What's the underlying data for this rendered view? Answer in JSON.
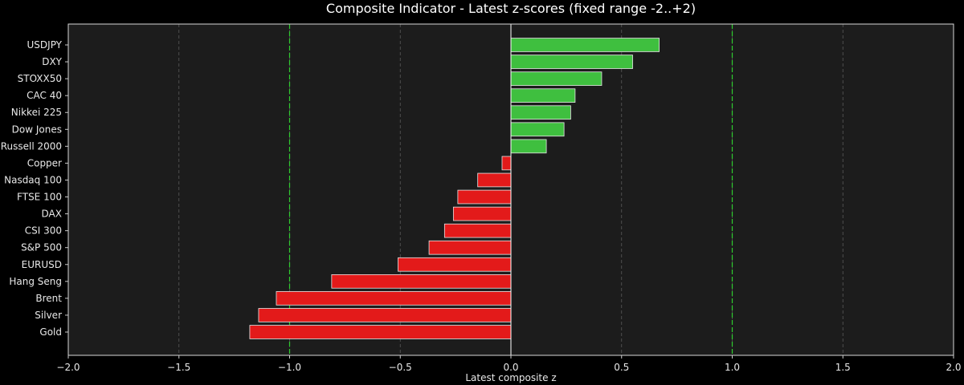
{
  "chart_data": {
    "type": "bar",
    "orientation": "horizontal",
    "title": "Composite Indicator - Latest z-scores (fixed range -2..+2)",
    "xlabel": "Latest composite z",
    "ylabel": "",
    "xlim": [
      -2.0,
      2.0
    ],
    "x_ticks": [
      "−2.0",
      "−1.5",
      "−1.0",
      "−0.5",
      "0.0",
      "0.5",
      "1.0",
      "1.5",
      "2.0"
    ],
    "x_tick_values": [
      -2.0,
      -1.5,
      -1.0,
      -0.5,
      0.0,
      0.5,
      1.0,
      1.5,
      2.0
    ],
    "grid": "x dashed",
    "threshold_lines": [
      -1.0,
      1.0
    ],
    "categories": [
      "USDJPY",
      "DXY",
      "STOXX50",
      "CAC 40",
      "Nikkei 225",
      "Dow Jones",
      "Russell 2000",
      "Copper",
      "Nasdaq 100",
      "FTSE 100",
      "DAX",
      "CSI 300",
      "S&P 500",
      "EURUSD",
      "Hang Seng",
      "Brent",
      "Silver",
      "Gold"
    ],
    "values": [
      0.67,
      0.55,
      0.41,
      0.29,
      0.27,
      0.24,
      0.16,
      -0.04,
      -0.15,
      -0.24,
      -0.26,
      -0.3,
      -0.37,
      -0.51,
      -0.81,
      -1.06,
      -1.14,
      -1.18
    ]
  },
  "colors": {
    "background": "#000000",
    "plot_background": "#1c1c1c",
    "positive_bar": "#3fbf3f",
    "negative_bar": "#e31a1a",
    "bar_edge": "#e6e6e6",
    "threshold_line": "#2ecc2e",
    "grid": "#5a5a5a",
    "zero_line": "#ffffff"
  }
}
